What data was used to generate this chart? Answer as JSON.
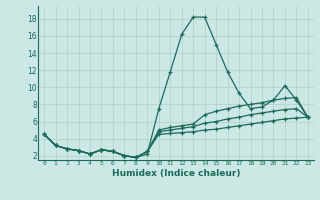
{
  "xlabel": "Humidex (Indice chaleur)",
  "bg_color": "#cce8e4",
  "grid_color": "#b0ceca",
  "line_color": "#1a6b5a",
  "xlim": [
    -0.5,
    23.5
  ],
  "ylim": [
    1.5,
    19.5
  ],
  "xticks": [
    0,
    1,
    2,
    3,
    4,
    5,
    6,
    7,
    8,
    9,
    10,
    11,
    12,
    13,
    14,
    15,
    16,
    17,
    18,
    19,
    20,
    21,
    22,
    23
  ],
  "yticks": [
    2,
    4,
    6,
    8,
    10,
    12,
    14,
    16,
    18
  ],
  "line1_x": [
    0,
    1,
    2,
    3,
    4,
    5,
    6,
    7,
    8,
    9,
    10,
    11,
    12,
    13,
    14,
    15,
    16,
    17,
    18,
    19,
    20,
    21,
    22,
    23
  ],
  "line1_y": [
    4.5,
    3.2,
    2.8,
    2.6,
    2.2,
    2.7,
    2.5,
    2.0,
    1.8,
    2.2,
    7.5,
    11.8,
    16.2,
    18.2,
    18.2,
    15.0,
    11.8,
    9.3,
    7.5,
    7.7,
    8.5,
    10.2,
    8.5,
    6.5
  ],
  "line2_x": [
    0,
    1,
    2,
    3,
    4,
    5,
    6,
    7,
    8,
    9,
    10,
    11,
    12,
    13,
    14,
    15,
    16,
    17,
    18,
    19,
    20,
    21,
    22,
    23
  ],
  "line2_y": [
    4.5,
    3.2,
    2.8,
    2.6,
    2.2,
    2.7,
    2.5,
    2.0,
    1.8,
    2.5,
    5.0,
    5.3,
    5.5,
    5.7,
    6.8,
    7.2,
    7.5,
    7.8,
    8.0,
    8.2,
    8.5,
    8.7,
    8.8,
    6.5
  ],
  "line3_x": [
    0,
    1,
    2,
    3,
    4,
    5,
    6,
    7,
    8,
    9,
    10,
    11,
    12,
    13,
    14,
    15,
    16,
    17,
    18,
    19,
    20,
    21,
    22,
    23
  ],
  "line3_y": [
    4.5,
    3.2,
    2.8,
    2.6,
    2.2,
    2.7,
    2.5,
    2.0,
    1.8,
    2.5,
    4.8,
    5.0,
    5.2,
    5.4,
    5.8,
    6.0,
    6.3,
    6.5,
    6.8,
    7.0,
    7.2,
    7.4,
    7.5,
    6.5
  ],
  "line4_x": [
    0,
    1,
    2,
    3,
    4,
    5,
    6,
    7,
    8,
    9,
    10,
    11,
    12,
    13,
    14,
    15,
    16,
    17,
    18,
    19,
    20,
    21,
    22,
    23
  ],
  "line4_y": [
    4.5,
    3.2,
    2.8,
    2.6,
    2.2,
    2.7,
    2.5,
    2.0,
    1.8,
    2.5,
    4.5,
    4.6,
    4.7,
    4.8,
    5.0,
    5.1,
    5.3,
    5.5,
    5.7,
    5.9,
    6.1,
    6.3,
    6.4,
    6.5
  ]
}
